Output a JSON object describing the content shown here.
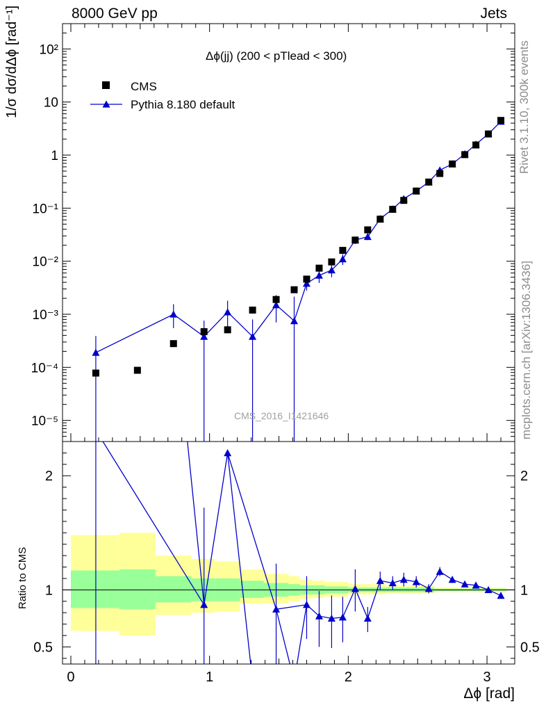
{
  "header": {
    "left": "8000 GeV pp",
    "right": "Jets"
  },
  "side_labels": {
    "top": "Rivet 3.1.10,  300k events",
    "bottom": "mcplots.cern.ch [arXiv:1306.3436]"
  },
  "watermark": "CMS_2016_I1421646",
  "colors": {
    "data": "#000000",
    "mc": "#0000cc",
    "band_inner": "#99ff99",
    "band_outer": "#ffff99"
  },
  "chart_data": [
    {
      "type": "scatter",
      "title": "Δϕ(jj) (200 < pTlead <  300)",
      "ylabel": "1/σ dσ/dΔϕ [rad⁻¹]",
      "xlabel": "",
      "yscale": "log",
      "xlim": [
        -0.06,
        3.2
      ],
      "ylim": [
        4e-06,
        300
      ],
      "legend": {
        "position": "top-left",
        "entries": [
          "CMS",
          "Pythia 8.180 default"
        ]
      },
      "series": [
        {
          "name": "CMS",
          "marker": "square",
          "x": [
            0.18,
            0.48,
            0.74,
            0.96,
            1.13,
            1.31,
            1.48,
            1.61,
            1.7,
            1.79,
            1.88,
            1.96,
            2.05,
            2.14,
            2.23,
            2.32,
            2.4,
            2.49,
            2.58,
            2.66,
            2.75,
            2.84,
            2.92,
            3.01,
            3.1
          ],
          "y": [
            7.8e-05,
            8.8e-05,
            0.00028,
            0.00047,
            0.00051,
            0.0012,
            0.0019,
            0.0029,
            0.0046,
            0.0074,
            0.0097,
            0.016,
            0.025,
            0.039,
            0.062,
            0.095,
            0.14,
            0.21,
            0.31,
            0.45,
            0.68,
            1.02,
            1.55,
            2.5,
            4.5
          ]
        },
        {
          "name": "Pythia 8.180 default",
          "marker": "triangle",
          "x": [
            0.18,
            0.74,
            0.96,
            1.13,
            1.31,
            1.48,
            1.61,
            1.7,
            1.79,
            1.88,
            1.96,
            2.05,
            2.14,
            2.23,
            2.32,
            2.4,
            2.49,
            2.58,
            2.66,
            2.75,
            2.84,
            2.92,
            3.01,
            3.1
          ],
          "y": [
            0.00019,
            0.001,
            0.00038,
            0.0011,
            0.00038,
            0.0015,
            0.00075,
            0.0038,
            0.0054,
            0.0068,
            0.011,
            0.025,
            0.029,
            0.063,
            0.096,
            0.15,
            0.21,
            0.31,
            0.52,
            0.68,
            1.05,
            1.6,
            2.5,
            4.3
          ],
          "yerr_low": [
            0.0002,
            0.00045,
            0.00038,
            0.0006,
            0.00038,
            0.0008,
            0.00075,
            0.001,
            0.0015,
            0.0018,
            0.0025,
            0.004,
            0.004,
            0.006,
            0.008,
            0.01,
            0.012,
            0.015,
            0.02,
            0.03,
            0.04,
            0.05,
            0.06,
            0.07
          ],
          "yerr_high": [
            0.0002,
            0.00055,
            0.00038,
            0.0007,
            0.00042,
            0.0008,
            0.0014,
            0.001,
            0.0015,
            0.0018,
            0.0025,
            0.004,
            0.004,
            0.006,
            0.008,
            0.01,
            0.012,
            0.015,
            0.02,
            0.03,
            0.04,
            0.05,
            0.06,
            0.07
          ]
        }
      ],
      "y_ticks": [
        1e-05,
        0.0001,
        0.001,
        0.01,
        0.1,
        1,
        10,
        100
      ],
      "y_tick_labels": [
        "10⁻⁵",
        "10⁻⁴",
        "10⁻³",
        "10⁻²",
        "10⁻¹",
        "1",
        "10",
        "10²"
      ]
    },
    {
      "type": "line",
      "title": "",
      "ylabel": "Ratio to CMS",
      "xlabel": "Δϕ [rad]",
      "xlim": [
        -0.06,
        3.2
      ],
      "ylim": [
        0.35,
        2.3
      ],
      "x_ticks": [
        0,
        1,
        2,
        3
      ],
      "x_tick_labels": [
        "0",
        "1",
        "2",
        "3"
      ],
      "y_ticks": [
        0.5,
        1,
        2
      ],
      "y_tick_labels": [
        "0.5",
        "1",
        "2"
      ],
      "bands": [
        {
          "x_low": 0.0,
          "x_high": 0.35,
          "inner_low": 0.84,
          "inner_high": 1.17,
          "outer_low": 0.64,
          "outer_high": 1.48
        },
        {
          "x_low": 0.35,
          "x_high": 0.61,
          "inner_low": 0.83,
          "inner_high": 1.18,
          "outer_low": 0.6,
          "outer_high": 1.5
        },
        {
          "x_low": 0.61,
          "x_high": 0.87,
          "inner_low": 0.89,
          "inner_high": 1.12,
          "outer_low": 0.78,
          "outer_high": 1.3
        },
        {
          "x_low": 0.87,
          "x_high": 1.04,
          "inner_low": 0.9,
          "inner_high": 1.1,
          "outer_low": 0.8,
          "outer_high": 1.27
        },
        {
          "x_low": 1.04,
          "x_high": 1.22,
          "inner_low": 0.9,
          "inner_high": 1.1,
          "outer_low": 0.81,
          "outer_high": 1.25
        },
        {
          "x_low": 1.22,
          "x_high": 1.39,
          "inner_low": 0.93,
          "inner_high": 1.08,
          "outer_low": 0.88,
          "outer_high": 1.18
        },
        {
          "x_low": 1.39,
          "x_high": 1.57,
          "inner_low": 0.94,
          "inner_high": 1.06,
          "outer_low": 0.88,
          "outer_high": 1.14
        },
        {
          "x_low": 1.57,
          "x_high": 1.65,
          "inner_low": 0.95,
          "inner_high": 1.05,
          "outer_low": 0.9,
          "outer_high": 1.12
        },
        {
          "x_low": 1.65,
          "x_high": 1.74,
          "inner_low": 0.96,
          "inner_high": 1.04,
          "outer_low": 0.92,
          "outer_high": 1.09
        },
        {
          "x_low": 1.74,
          "x_high": 1.83,
          "inner_low": 0.96,
          "inner_high": 1.04,
          "outer_low": 0.93,
          "outer_high": 1.08
        },
        {
          "x_low": 1.83,
          "x_high": 2.0,
          "inner_low": 0.97,
          "inner_high": 1.03,
          "outer_low": 0.94,
          "outer_high": 1.07
        },
        {
          "x_low": 2.0,
          "x_high": 2.27,
          "inner_low": 0.98,
          "inner_high": 1.02,
          "outer_low": 0.96,
          "outer_high": 1.05
        },
        {
          "x_low": 2.27,
          "x_high": 2.62,
          "inner_low": 0.98,
          "inner_high": 1.02,
          "outer_low": 0.97,
          "outer_high": 1.04
        },
        {
          "x_low": 2.62,
          "x_high": 3.14,
          "inner_low": 0.99,
          "inner_high": 1.01,
          "outer_low": 0.98,
          "outer_high": 1.02
        }
      ],
      "series": [
        {
          "name": "Pythia 8.180 default",
          "x": [
            0.18,
            0.96,
            1.13,
            1.48,
            1.7,
            1.79,
            1.88,
            1.96,
            2.05,
            2.14,
            2.23,
            2.32,
            2.4,
            2.49,
            2.58,
            2.66,
            2.75,
            2.84,
            2.92,
            3.01,
            3.1
          ],
          "y": [
            2.4,
            0.87,
            2.2,
            0.83,
            0.87,
            0.77,
            0.75,
            0.76,
            1.01,
            0.75,
            1.08,
            1.06,
            1.09,
            1.07,
            1.01,
            1.16,
            1.09,
            1.05,
            1.04,
            1.0,
            0.95
          ],
          "yerr_low": [
            2.2,
            0.6,
            0.0,
            0.6,
            0.3,
            0.27,
            0.26,
            0.22,
            0.2,
            0.12,
            0.08,
            0.06,
            0.06,
            0.05,
            0.04,
            0.04,
            0.03,
            0.02,
            0.02,
            0.01,
            0.01
          ],
          "yerr_high": [
            0.0,
            0.85,
            0.0,
            0.4,
            0.25,
            0.22,
            0.2,
            0.18,
            0.17,
            0.1,
            0.08,
            0.06,
            0.06,
            0.05,
            0.04,
            0.04,
            0.03,
            0.02,
            0.02,
            0.01,
            0.01
          ]
        }
      ],
      "offscale_segments": [
        {
          "from": [
            0.74,
            3.5
          ],
          "to": [
            0.96,
            0.87
          ]
        },
        {
          "from": [
            1.13,
            2.2
          ],
          "to": [
            1.31,
            0.2
          ]
        },
        {
          "from": [
            1.48,
            0.83
          ],
          "to": [
            1.61,
            0.2
          ]
        },
        {
          "from": [
            1.61,
            0.2
          ],
          "to": [
            1.7,
            0.87
          ]
        }
      ]
    }
  ]
}
